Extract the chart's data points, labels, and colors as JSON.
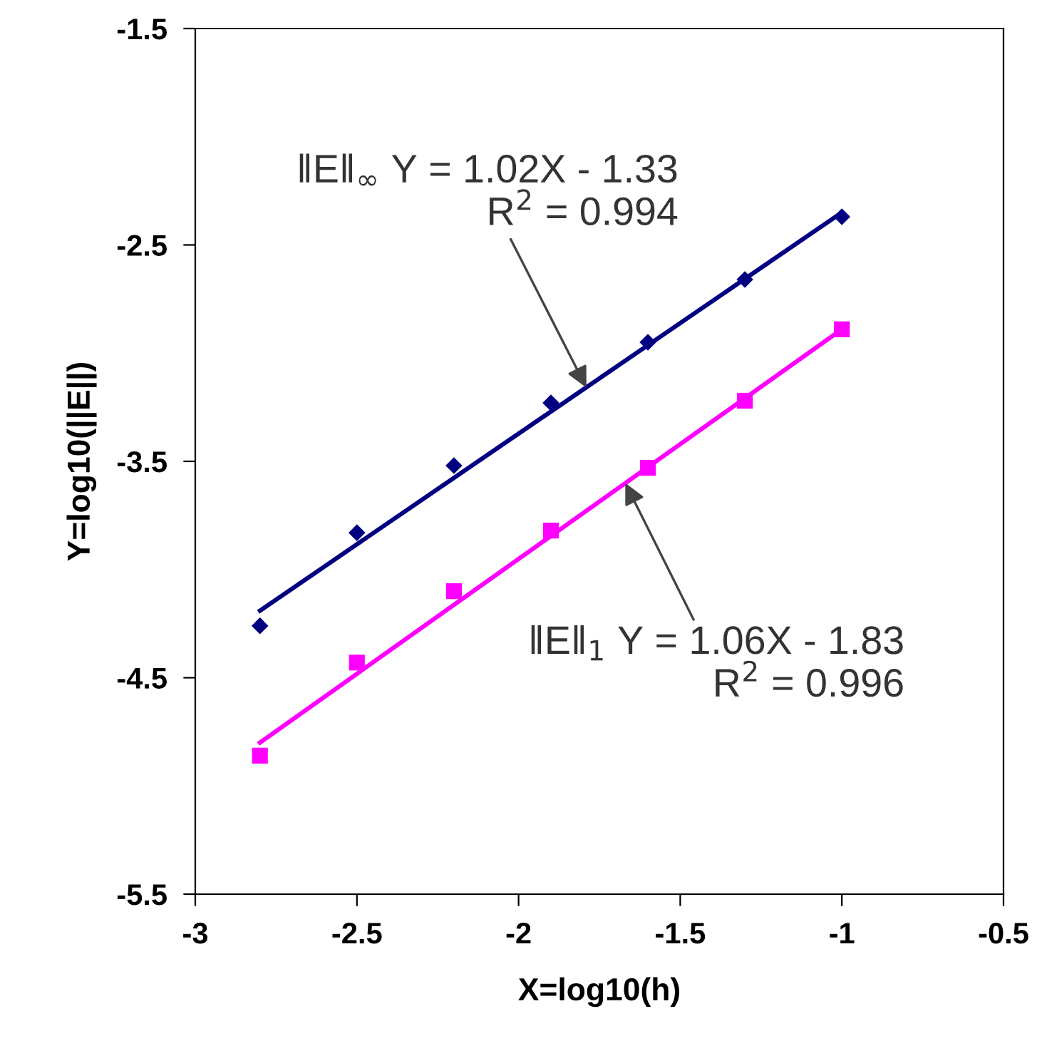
{
  "chart_data": {
    "type": "scatter",
    "xlabel": "X=log10(h)",
    "ylabel": "Y=log10(||E||)",
    "xlim": [
      -3,
      -0.5
    ],
    "xticks": [
      -3,
      -2.5,
      -2,
      -1.5,
      -1,
      -0.5
    ],
    "ylim": [
      -5.5,
      -1.5
    ],
    "yticks": [
      -5.5,
      -4.5,
      -3.5,
      -2.5,
      -1.5
    ],
    "grid": false,
    "legend": false,
    "series": [
      {
        "color": "#000080",
        "marker": "diamond",
        "x": [
          -2.8,
          -2.5,
          -2.2,
          -1.9,
          -1.6,
          -1.3,
          -1.0
        ],
        "values": [
          -4.26,
          -3.83,
          -3.52,
          -3.23,
          -2.95,
          -2.66,
          -2.37
        ]
      },
      {
        "color": "#ff00ff",
        "marker": "square",
        "x": [
          -2.8,
          -2.5,
          -2.2,
          -1.9,
          -1.6,
          -1.3,
          -1.0
        ],
        "values": [
          -4.86,
          -4.43,
          -4.1,
          -3.82,
          -3.53,
          -3.22,
          -2.89
        ]
      },
      {
        "type": "line",
        "color": "#000080",
        "marker": "none",
        "x": [
          -2.8,
          -1.0
        ],
        "values": [
          -4.19,
          -2.35
        ]
      },
      {
        "type": "line",
        "color": "#ff00ff",
        "marker": "none",
        "x": [
          -2.8,
          -1.0
        ],
        "values": [
          -4.8,
          -2.89
        ]
      }
    ],
    "annotations": [
      {
        "text": "‖E‖$_{∞}$ Y = 1.02X - 1.33\nR$^{2}$ = 0.994",
        "x": -1.79,
        "y": -3.16
      },
      {
        "text": "‖E‖$_{1}$ Y = 1.06X - 1.83\nR$^{2}$ = 0.996",
        "x": -1.67,
        "y": -3.6
      }
    ]
  }
}
